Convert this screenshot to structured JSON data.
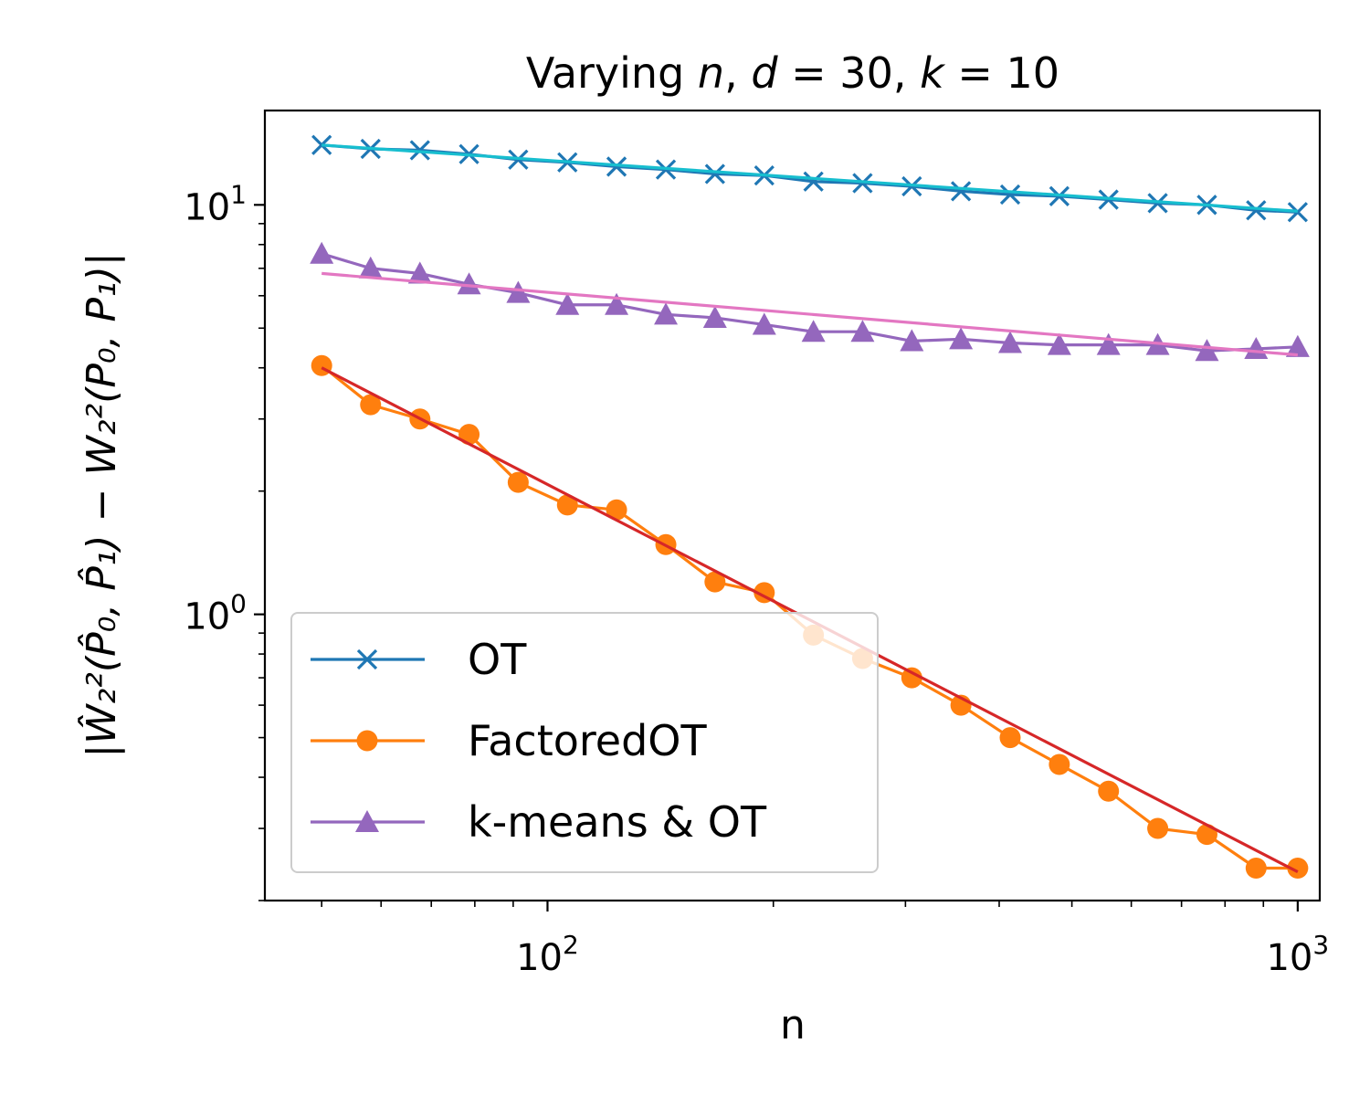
{
  "chart_data": {
    "type": "line",
    "title": "Varying n, d = 30, k = 10",
    "title_parts": {
      "prefix": "Varying ",
      "n": "n",
      "mid1": ", ",
      "d": "d",
      "mid2": " = 30, ",
      "k": "k",
      "suffix": " = 10"
    },
    "xlabel": "n",
    "ylabel": "|Ŵ₂²(P̂₀, P̂₁) − W₂²(P₀, P₁)|",
    "xscale": "log",
    "yscale": "log",
    "xlim": [
      42,
      1070
    ],
    "ylim": [
      0.2,
      17
    ],
    "x_ticks": [
      {
        "value": 100,
        "base": "10",
        "exp": "2"
      },
      {
        "value": 1000,
        "base": "10",
        "exp": "3"
      }
    ],
    "y_ticks": [
      {
        "value": 1,
        "base": "10",
        "exp": "0"
      },
      {
        "value": 10,
        "base": "10",
        "exp": "1"
      }
    ],
    "x": [
      50,
      58.1,
      67.6,
      78.6,
      91.4,
      106.3,
      123.6,
      143.8,
      167.2,
      194.5,
      226.2,
      263.0,
      305.9,
      355.7,
      413.7,
      481.1,
      559.5,
      650.7,
      756.8,
      880.1,
      1000
    ],
    "series": [
      {
        "name": "OT",
        "color": "#1f77b4",
        "marker": "x",
        "values": [
          14.0,
          13.7,
          13.6,
          13.3,
          12.9,
          12.7,
          12.4,
          12.2,
          11.9,
          11.8,
          11.4,
          11.3,
          11.1,
          10.8,
          10.6,
          10.5,
          10.3,
          10.1,
          10.0,
          9.7,
          9.6
        ]
      },
      {
        "name": "FactoredOT",
        "color": "#ff7f0e",
        "marker": "o",
        "values": [
          4.05,
          3.25,
          3.0,
          2.75,
          2.1,
          1.85,
          1.8,
          1.48,
          1.2,
          1.13,
          0.89,
          0.78,
          0.7,
          0.6,
          0.5,
          0.43,
          0.37,
          0.3,
          0.29,
          0.24,
          0.24
        ]
      },
      {
        "name": "k-means & OT",
        "color": "#9467bd",
        "marker": "^",
        "values": [
          7.6,
          7.0,
          6.8,
          6.4,
          6.1,
          5.7,
          5.7,
          5.4,
          5.3,
          5.1,
          4.9,
          4.9,
          4.65,
          4.7,
          4.6,
          4.55,
          4.55,
          4.55,
          4.4,
          4.45,
          4.5
        ]
      }
    ],
    "fit_lines": [
      {
        "for": "OT",
        "color": "#17becf",
        "from": [
          50,
          14.0
        ],
        "to": [
          1000,
          9.65
        ]
      },
      {
        "for": "k-means & OT",
        "color": "#e377c2",
        "from": [
          50,
          6.8
        ],
        "to": [
          1000,
          4.3
        ]
      },
      {
        "for": "FactoredOT",
        "color": "#d62728",
        "from": [
          50,
          4.0
        ],
        "to": [
          1000,
          0.235
        ]
      }
    ],
    "legend": {
      "position": "lower-left",
      "entries": [
        "OT",
        "FactoredOT",
        "k-means & OT"
      ]
    }
  }
}
